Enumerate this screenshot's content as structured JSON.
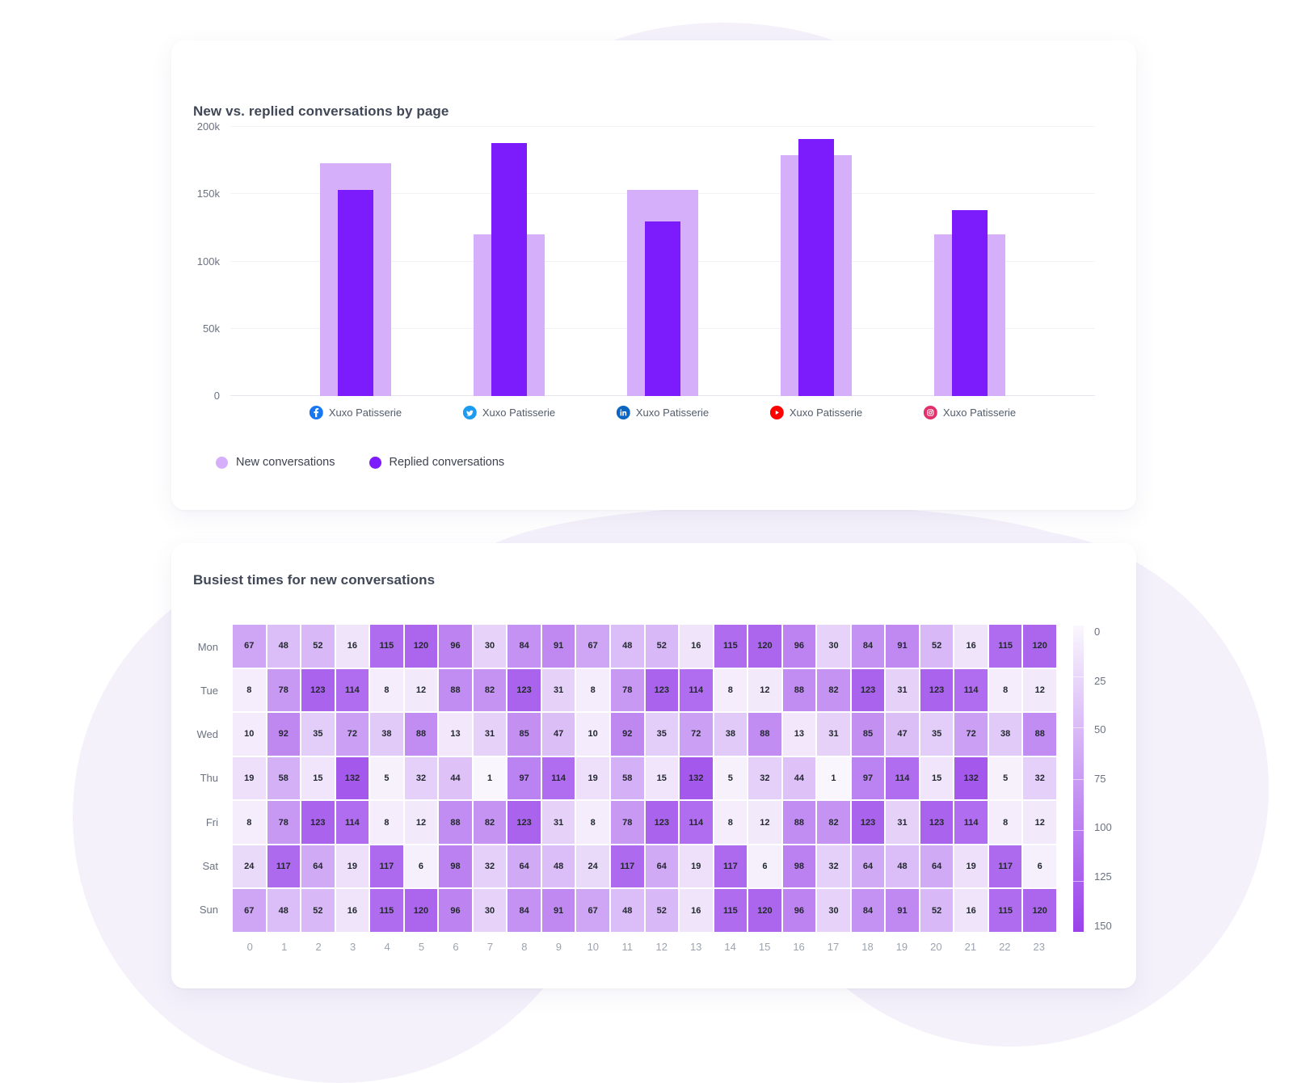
{
  "accent_colors": {
    "new_conversations": "#d5affa",
    "replied_conversations": "#7c1cfc",
    "background_blob": "#f4f1fb"
  },
  "chart_data": [
    {
      "type": "bar",
      "title": "New vs. replied conversations by page",
      "categories": [
        {
          "icon": "facebook-icon",
          "icon_color": "#1877F2",
          "label": "Xuxo Patisserie"
        },
        {
          "icon": "twitter-icon",
          "icon_color": "#1D9BF0",
          "label": "Xuxo Patisserie"
        },
        {
          "icon": "linkedin-icon",
          "icon_color": "#0A66C2",
          "label": "Xuxo Patisserie"
        },
        {
          "icon": "youtube-icon",
          "icon_color": "#FF0000",
          "label": "Xuxo Patisserie"
        },
        {
          "icon": "instagram-icon",
          "icon_color": "#E1306C",
          "label": "Xuxo Patisserie"
        }
      ],
      "series": [
        {
          "name": "New conversations",
          "color": "#d5affa",
          "values_k": [
            173,
            120,
            153,
            179,
            120
          ]
        },
        {
          "name": "Replied conversations",
          "color": "#7c1cfc",
          "values_k": [
            153,
            188,
            130,
            191,
            138
          ]
        }
      ],
      "y_ticks": [
        "0",
        "50k",
        "100k",
        "150k",
        "200k"
      ],
      "ymax_k": 200,
      "grid": "horizontal",
      "legend_position": "bottom-left"
    },
    {
      "type": "heatmap",
      "title": "Busiest times for new conversations",
      "rows": [
        "Mon",
        "Tue",
        "Wed",
        "Thu",
        "Fri",
        "Sat",
        "Sun"
      ],
      "cols": [
        "0",
        "1",
        "2",
        "3",
        "4",
        "5",
        "6",
        "7",
        "8",
        "9",
        "10",
        "11",
        "12",
        "13",
        "14",
        "15",
        "16",
        "17",
        "18",
        "19",
        "20",
        "21",
        "22",
        "23"
      ],
      "values": [
        [
          67,
          48,
          52,
          16,
          115,
          120,
          96,
          30,
          84,
          91,
          67,
          48,
          52,
          16,
          115,
          120,
          96,
          30,
          84,
          91,
          52,
          16,
          115,
          120
        ],
        [
          8,
          78,
          123,
          114,
          8,
          12,
          88,
          82,
          123,
          31,
          8,
          78,
          123,
          114,
          8,
          12,
          88,
          82,
          123,
          31,
          123,
          114,
          8,
          12
        ],
        [
          10,
          92,
          35,
          72,
          38,
          88,
          13,
          31,
          85,
          47,
          10,
          92,
          35,
          72,
          38,
          88,
          13,
          31,
          85,
          47,
          35,
          72,
          38,
          88
        ],
        [
          19,
          58,
          15,
          132,
          5,
          32,
          44,
          1,
          97,
          114,
          19,
          58,
          15,
          132,
          5,
          32,
          44,
          1,
          97,
          114,
          15,
          132,
          5,
          32
        ],
        [
          8,
          78,
          123,
          114,
          8,
          12,
          88,
          82,
          123,
          31,
          8,
          78,
          123,
          114,
          8,
          12,
          88,
          82,
          123,
          31,
          123,
          114,
          8,
          12
        ],
        [
          24,
          117,
          64,
          19,
          117,
          6,
          98,
          32,
          64,
          48,
          24,
          117,
          64,
          19,
          117,
          6,
          98,
          32,
          64,
          48,
          64,
          19,
          117,
          6
        ],
        [
          67,
          48,
          52,
          16,
          115,
          120,
          96,
          30,
          84,
          91,
          67,
          48,
          52,
          16,
          115,
          120,
          96,
          30,
          84,
          91,
          52,
          16,
          115,
          120
        ]
      ],
      "scale": {
        "min": 0,
        "max": 150,
        "ticks": [
          "0",
          "25",
          "50",
          "75",
          "100",
          "125",
          "150"
        ],
        "low_color": "#faf7fd",
        "high_color": "#9942ea"
      }
    }
  ]
}
